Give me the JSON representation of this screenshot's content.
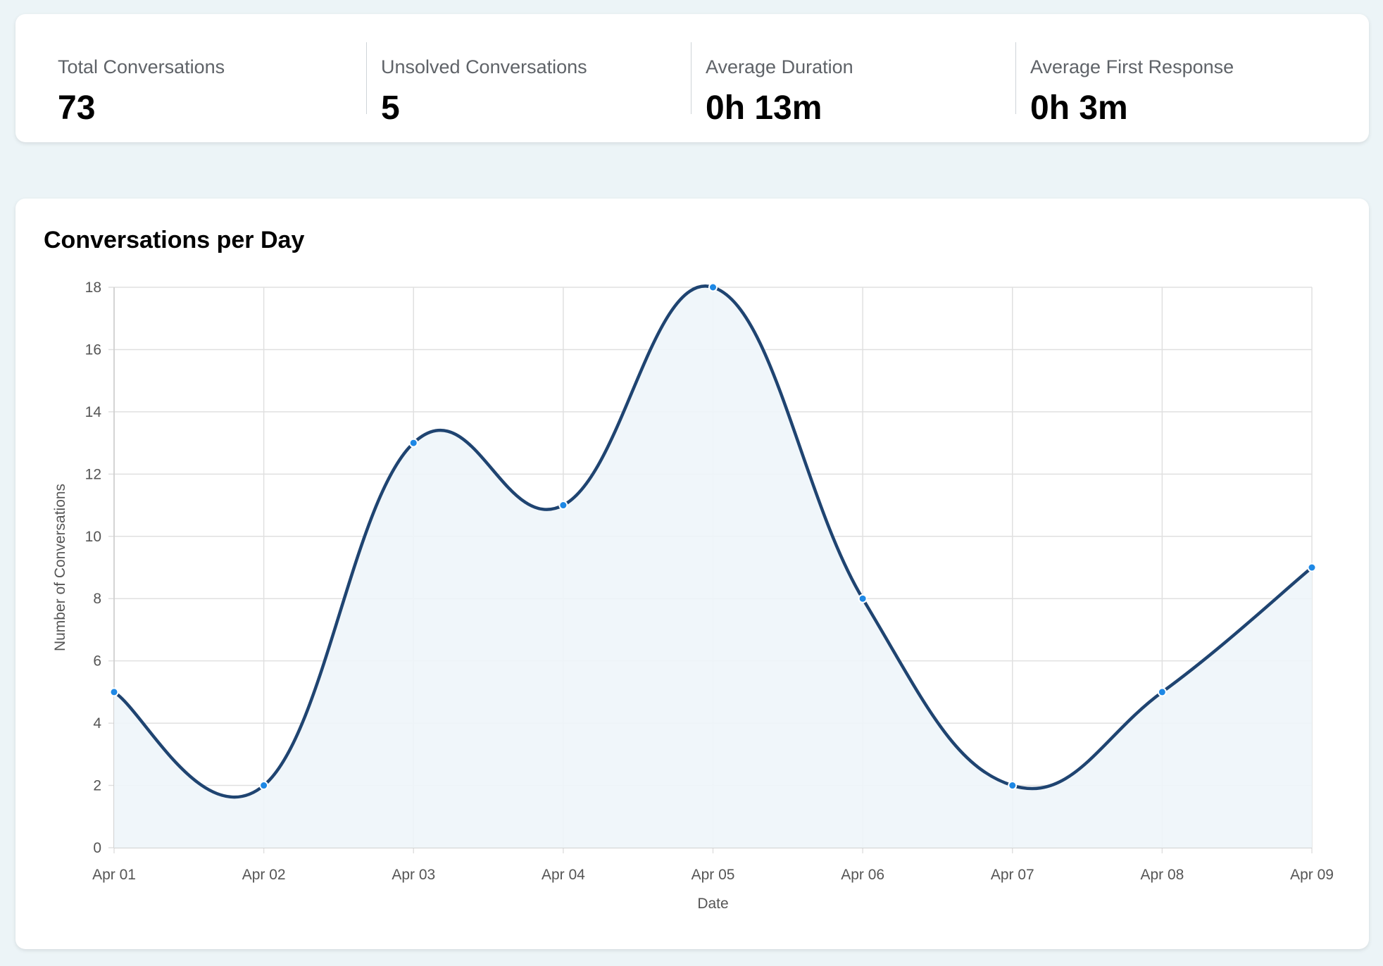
{
  "stats": [
    {
      "label": "Total Conversations",
      "value": "73"
    },
    {
      "label": "Unsolved Conversations",
      "value": "5"
    },
    {
      "label": "Average Duration",
      "value": "0h 13m"
    },
    {
      "label": "Average First Response",
      "value": "0h 3m"
    }
  ],
  "chart": {
    "title": "Conversations per Day"
  },
  "colors": {
    "background": "#ecf4f7",
    "line": "#1f4471",
    "fill": "#eef5f9",
    "point": "#1e88e5",
    "grid": "#e0e0e0"
  },
  "chart_data": {
    "type": "line",
    "title": "Conversations per Day",
    "categories": [
      "Apr 01",
      "Apr 02",
      "Apr 03",
      "Apr 04",
      "Apr 05",
      "Apr 06",
      "Apr 07",
      "Apr 08",
      "Apr 09"
    ],
    "series": [
      {
        "values": [
          5,
          2,
          13,
          11,
          18,
          8,
          2,
          5,
          9
        ]
      }
    ],
    "xlabel": "Date",
    "ylabel": "Number of Conversations",
    "ylim": [
      0,
      18
    ],
    "yticks": [
      0,
      2,
      4,
      6,
      8,
      10,
      12,
      14,
      16,
      18
    ],
    "grid": true,
    "smooth": true,
    "filled": true,
    "legend": "none"
  }
}
